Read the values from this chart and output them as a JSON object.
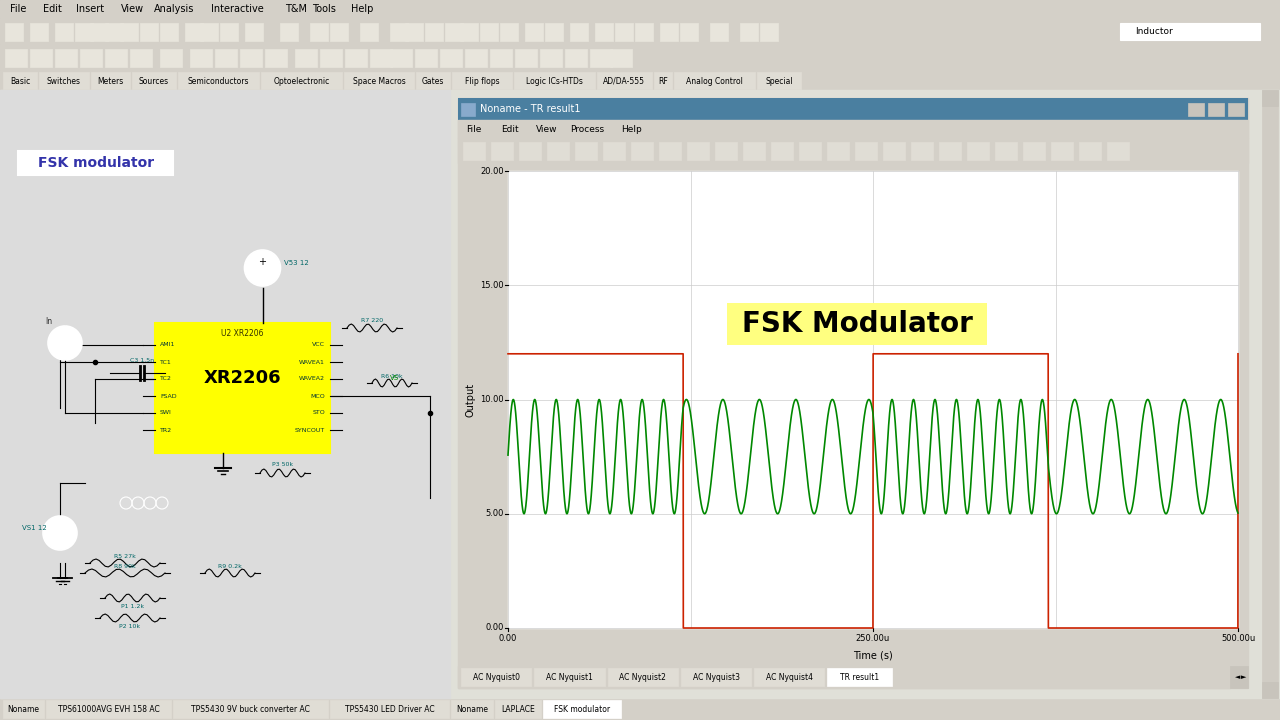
{
  "main_bg": "#c0c0c0",
  "menubar_color": "#d4d0c8",
  "toolbar_color": "#d4d0c8",
  "schematic_bg": "#e0e0d8",
  "fsk_label": "FSK modulator",
  "fsk_box_color": "#3333aa",
  "ic_color": "#ffff00",
  "ic_label": "XR2206",
  "ic_label2": "U2 XR2206",
  "circuit_text_color": "#006666",
  "wire_color": "#000000",
  "green_comp_color": "#008800",
  "plot_title": "FSK Modulator",
  "plot_title_bg": "#ffff80",
  "square_wave_color": "#cc2200",
  "sine_wave_color": "#008800",
  "ylabel": "Output",
  "xlabel": "Time (s)",
  "ytick_vals": [
    0.0,
    5.0,
    10.0,
    15.0,
    20.0
  ],
  "ytick_labels": [
    "0.00",
    "5.00",
    "10.00",
    "15.00",
    "20.00"
  ],
  "xtick_vals": [
    0,
    250,
    500
  ],
  "xtick_labels": [
    "0.00",
    "250.00u",
    "500.00u"
  ],
  "ymax": 20.0,
  "xmax": 500.0,
  "window_title": "Noname - TR result1",
  "window_bg": "#d4d0c8",
  "plot_area_bg": "#ffffff",
  "tab_labels": [
    "AC Nyquist0",
    "AC Nyquist1",
    "AC Nyquist2",
    "AC Nyquist3",
    "AC Nyquist4",
    "TR result1"
  ],
  "active_tab": "TR result1",
  "bottom_tabs": [
    "Noname",
    "TPS61000AVG EVH 158 AC",
    "TPS5430 9V buck converter AC",
    "TPS5430 LED Driver AC",
    "Noname",
    "LAPLACE",
    "FSK modulator"
  ],
  "active_bottom_tab": "FSK modulator",
  "menu_items": [
    "File",
    "Edit",
    "Insert",
    "View",
    "Analysis",
    "Interactive",
    "T&M",
    "Tools",
    "Help"
  ],
  "plot_menu_items": [
    "File",
    "Edit",
    "View",
    "Process",
    "Help"
  ],
  "component_tabs": [
    "Basic",
    "Switches",
    "Meters",
    "Sources",
    "Semiconductors",
    "Optoelectronic",
    "Space Macros",
    "Gates",
    "Flip flops",
    "Logic ICs-HTDs",
    "AD/DA-555",
    "RF",
    "Analog Control",
    "Special"
  ]
}
